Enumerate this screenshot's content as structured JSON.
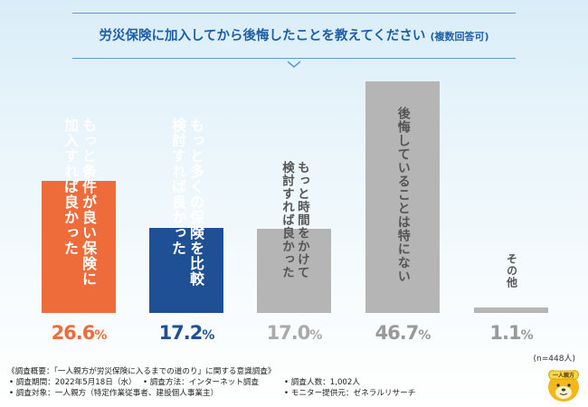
{
  "title": "労災保険に加入してから後悔したことを教えてください",
  "title_note": "(複数回答可)",
  "n_note": "(n=448人)",
  "chart_data": {
    "type": "bar",
    "categories": [
      "もっと条件が良い保険に加入すれば良かった",
      "もっと多くの保険を比較検討すれば良かった",
      "もっと時間をかけて検討すれば良かった",
      "後悔していることは特にない",
      "その他"
    ],
    "label_lines": [
      [
        "もっと条件が良い保険に",
        "加入すれば良かった"
      ],
      [
        "もっと多くの保険を比較",
        "検討すれば良かった"
      ],
      [
        "もっと時間をかけて",
        "検討すれば良かった"
      ],
      [
        "後悔していることは特にない"
      ],
      [
        "その他"
      ]
    ],
    "values": [
      26.6,
      17.2,
      17.0,
      46.7,
      1.1
    ],
    "value_labels": [
      "26.6",
      "17.2",
      "17.0",
      "46.7",
      "1.1"
    ],
    "unit": "%",
    "bar_colors": [
      "#ee6c3a",
      "#1f4f95",
      "#b5b5b5",
      "#b5b5b5",
      "#b5b5b5"
    ],
    "label_colors": [
      "#ffffff",
      "#ffffff",
      "#555555",
      "#555555",
      "#555555"
    ],
    "pct_colors": [
      "#ee6c3a",
      "#1f4f95",
      "#aaaaaa",
      "#999999",
      "#999999"
    ]
  },
  "survey": {
    "heading": "《調査概要：「一人親方が労災保険に入るまでの道のり」に関する意識調査》",
    "period": "• 調査期間：2022年5月18日（水）",
    "method": "• 調査方法：インターネット調査",
    "count": "• 調査人数：1,002人",
    "target": "• 調査対象：一人親方（特定作業従事者、建設個人事業主）",
    "provider": "• モニター提供元：ゼネラルリサーチ"
  },
  "logo_text": "一人親方"
}
